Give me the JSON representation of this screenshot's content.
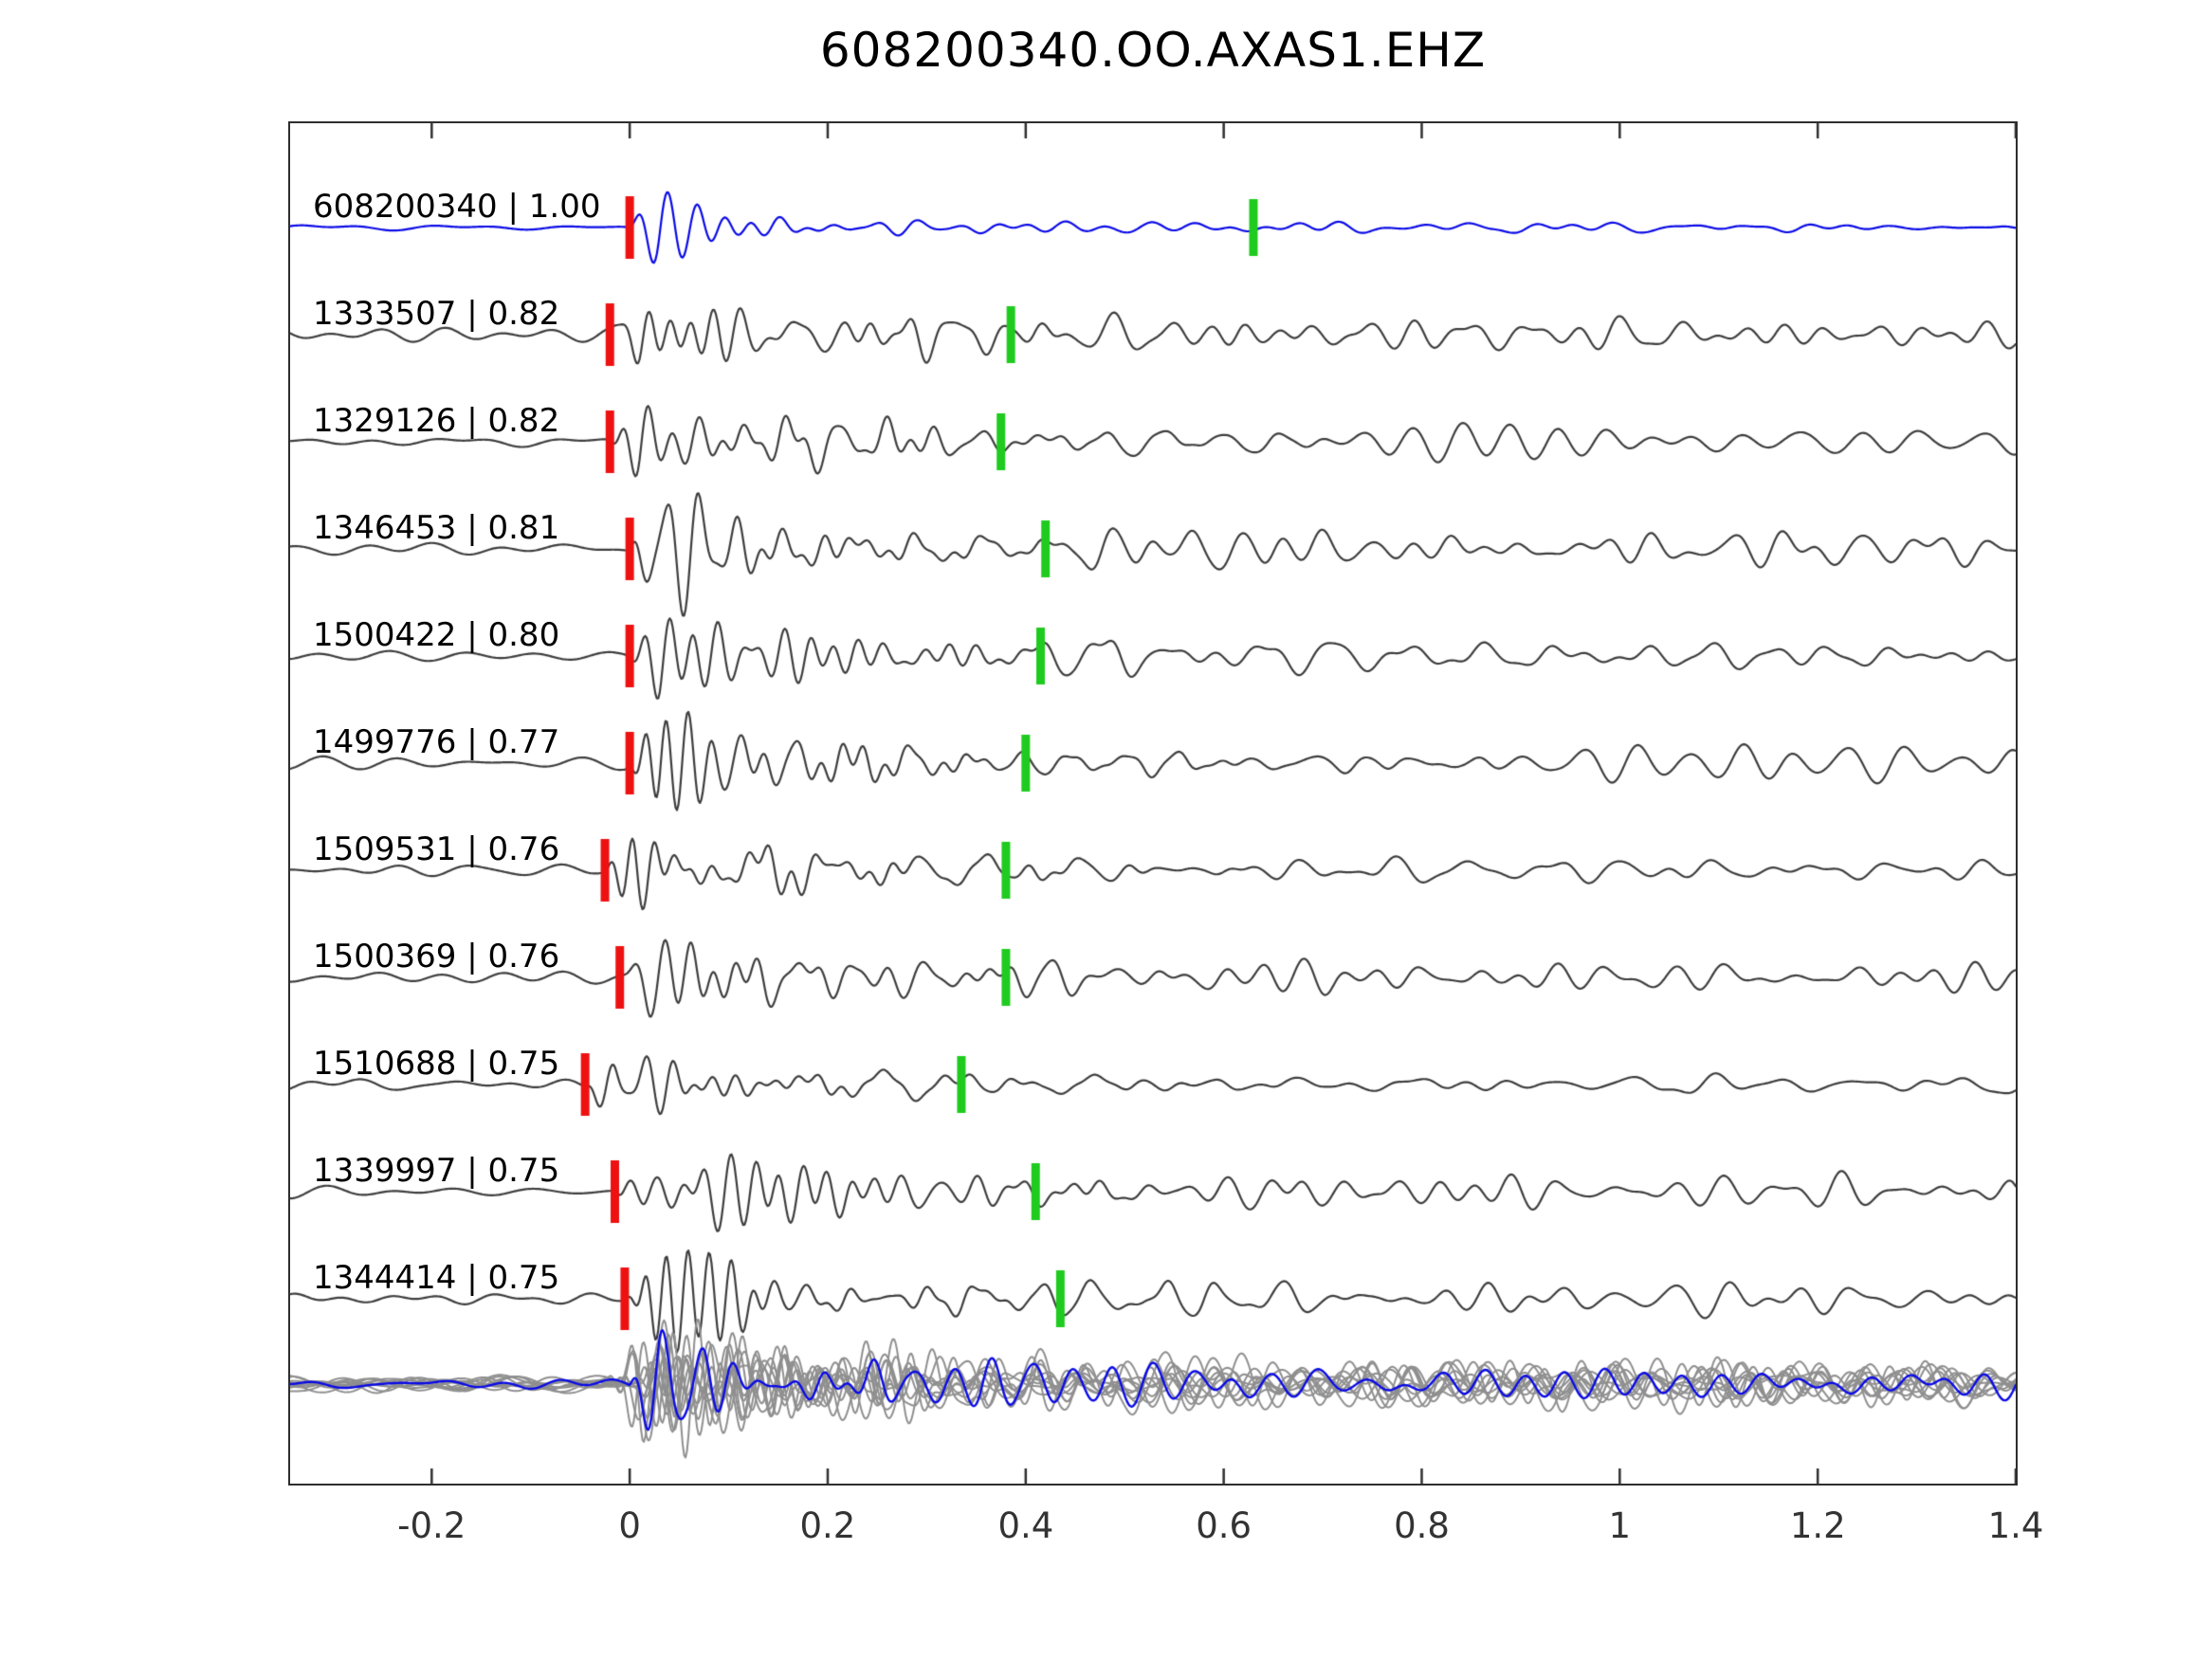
{
  "title": "608200340.OO.AXAS1.EHZ",
  "chart_data": {
    "type": "line",
    "subtype": "seismic-waveform-template-match-stack",
    "title": "608200340.OO.AXAS1.EHZ",
    "xlabel": "",
    "ylabel": "",
    "xlim": [
      -0.343,
      1.4
    ],
    "grid": false,
    "x_ticks": [
      -0.2,
      0,
      0.2,
      0.4,
      0.6,
      0.8,
      1,
      1.2,
      1.4
    ],
    "x_tick_labels": [
      "-0.2",
      "0",
      "0.2",
      "0.4",
      "0.6",
      "0.8",
      "1",
      "1.2",
      "1.4"
    ],
    "colors": {
      "reference_trace": "#0a0ae6",
      "match_trace": "#3d3d3d",
      "overlay_trace": "#8f8f8f",
      "pick_primary": "#ee1111",
      "pick_secondary": "#1ecb1e",
      "axis": "#2e2e2e"
    },
    "traces": [
      {
        "label": "608200340 | 1.00",
        "id": "608200340",
        "similarity": 1.0,
        "reference": true,
        "red_pick": 0.0,
        "green_pick": 0.63,
        "amp": 1.0
      },
      {
        "label": "1333507 | 0.82",
        "id": "1333507",
        "similarity": 0.82,
        "reference": false,
        "red_pick": -0.02,
        "green_pick": 0.385,
        "amp": 1.0
      },
      {
        "label": "1329126 | 0.82",
        "id": "1329126",
        "similarity": 0.82,
        "reference": false,
        "red_pick": -0.02,
        "green_pick": 0.375,
        "amp": 1.15
      },
      {
        "label": "1346453 | 0.81",
        "id": "1346453",
        "similarity": 0.81,
        "reference": false,
        "red_pick": 0.0,
        "green_pick": 0.42,
        "amp": 1.1
      },
      {
        "label": "1500422 | 0.80",
        "id": "1500422",
        "similarity": 0.8,
        "reference": false,
        "red_pick": 0.0,
        "green_pick": 0.415,
        "amp": 1.05
      },
      {
        "label": "1499776 | 0.77",
        "id": "1499776",
        "similarity": 0.77,
        "reference": false,
        "red_pick": 0.0,
        "green_pick": 0.4,
        "amp": 1.0
      },
      {
        "label": "1509531 | 0.76",
        "id": "1509531",
        "similarity": 0.76,
        "reference": false,
        "red_pick": -0.025,
        "green_pick": 0.38,
        "amp": 0.8
      },
      {
        "label": "1500369 | 0.76",
        "id": "1500369",
        "similarity": 0.76,
        "reference": false,
        "red_pick": -0.01,
        "green_pick": 0.38,
        "amp": 0.95
      },
      {
        "label": "1510688 | 0.75",
        "id": "1510688",
        "similarity": 0.75,
        "reference": false,
        "red_pick": -0.045,
        "green_pick": 0.335,
        "amp": 0.7
      },
      {
        "label": "1339997 | 0.75",
        "id": "1339997",
        "similarity": 0.75,
        "reference": false,
        "red_pick": -0.015,
        "green_pick": 0.41,
        "amp": 1.05
      },
      {
        "label": "1344414 | 0.75",
        "id": "1344414",
        "similarity": 0.75,
        "reference": false,
        "red_pick": -0.005,
        "green_pick": 0.435,
        "amp": 1.0
      }
    ],
    "overlay": {
      "description": "all matched traces superimposed in gray with reference trace in blue",
      "count": 10
    }
  }
}
